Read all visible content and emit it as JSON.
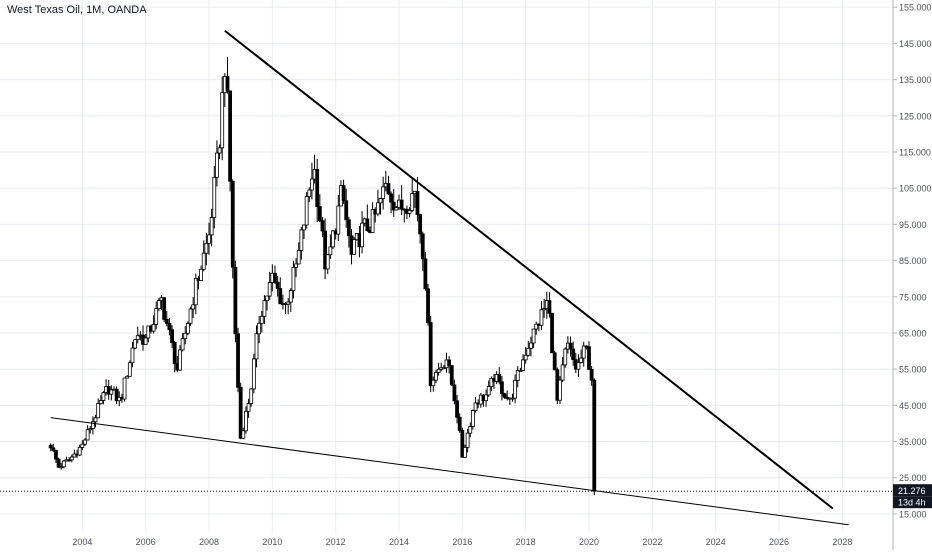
{
  "header": {
    "title": "West Texas Oil, 1M, OANDA"
  },
  "price_badge": {
    "value": "21.276",
    "countdown": "13d 4h",
    "color": "#131722"
  },
  "colors": {
    "background": "#ffffff",
    "grid": "#e8ecf2",
    "axis_text": "#50535e",
    "candles": "#000000",
    "trendline": "#000000"
  },
  "chart_data": {
    "type": "candlestick",
    "title": "West Texas Oil, 1M, OANDA",
    "xlabel": "",
    "ylabel": "",
    "x_ticks": [
      "2004",
      "2006",
      "2008",
      "2010",
      "2012",
      "2014",
      "2016",
      "2018",
      "2020",
      "2022",
      "2024",
      "2026",
      "2028"
    ],
    "y_ticks": [
      "15.000",
      "25.000",
      "35.000",
      "45.000",
      "55.000",
      "65.000",
      "75.000",
      "85.000",
      "95.000",
      "105.000",
      "115.000",
      "125.000",
      "135.000",
      "145.000",
      "155.000"
    ],
    "xlim": [
      2001.4,
      2029.6
    ],
    "ylim": [
      10.0,
      157.0
    ],
    "grid": true,
    "last_price": 21.276,
    "price_path": [
      [
        2003.0,
        34
      ],
      [
        2003.25,
        28
      ],
      [
        2003.6,
        30
      ],
      [
        2004.0,
        34
      ],
      [
        2004.3,
        40
      ],
      [
        2004.8,
        50
      ],
      [
        2005.2,
        46
      ],
      [
        2005.7,
        65
      ],
      [
        2006.0,
        63
      ],
      [
        2006.5,
        74
      ],
      [
        2007.0,
        55
      ],
      [
        2007.5,
        75
      ],
      [
        2008.0,
        92
      ],
      [
        2008.3,
        115
      ],
      [
        2008.5,
        140
      ],
      [
        2008.6,
        125
      ],
      [
        2008.8,
        70
      ],
      [
        2009.0,
        36
      ],
      [
        2009.3,
        48
      ],
      [
        2009.6,
        70
      ],
      [
        2010.0,
        80
      ],
      [
        2010.4,
        72
      ],
      [
        2010.8,
        85
      ],
      [
        2011.3,
        112
      ],
      [
        2011.7,
        82
      ],
      [
        2012.2,
        104
      ],
      [
        2012.5,
        86
      ],
      [
        2012.8,
        93
      ],
      [
        2013.2,
        96
      ],
      [
        2013.6,
        106
      ],
      [
        2014.0,
        99
      ],
      [
        2014.5,
        104
      ],
      [
        2014.8,
        85
      ],
      [
        2015.0,
        52
      ],
      [
        2015.5,
        58
      ],
      [
        2015.8,
        45
      ],
      [
        2016.0,
        31
      ],
      [
        2016.4,
        46
      ],
      [
        2016.8,
        48
      ],
      [
        2017.0,
        53
      ],
      [
        2017.5,
        46
      ],
      [
        2018.0,
        60
      ],
      [
        2018.4,
        68
      ],
      [
        2018.7,
        74
      ],
      [
        2019.0,
        46
      ],
      [
        2019.3,
        62
      ],
      [
        2019.6,
        55
      ],
      [
        2019.9,
        61
      ],
      [
        2020.1,
        52
      ],
      [
        2020.2,
        21.3
      ]
    ],
    "annotations": [
      {
        "type": "trendline",
        "label": "upper",
        "from": {
          "x": 2008.5,
          "y": 148.5
        },
        "to": {
          "x": 2027.7,
          "y": 16.5
        }
      },
      {
        "type": "trendline",
        "label": "lower",
        "from": {
          "x": 2003.0,
          "y": 41.6
        },
        "to": {
          "x": 2028.2,
          "y": 12.0
        }
      },
      {
        "type": "hline",
        "label": "last price",
        "y": 21.276
      }
    ]
  }
}
